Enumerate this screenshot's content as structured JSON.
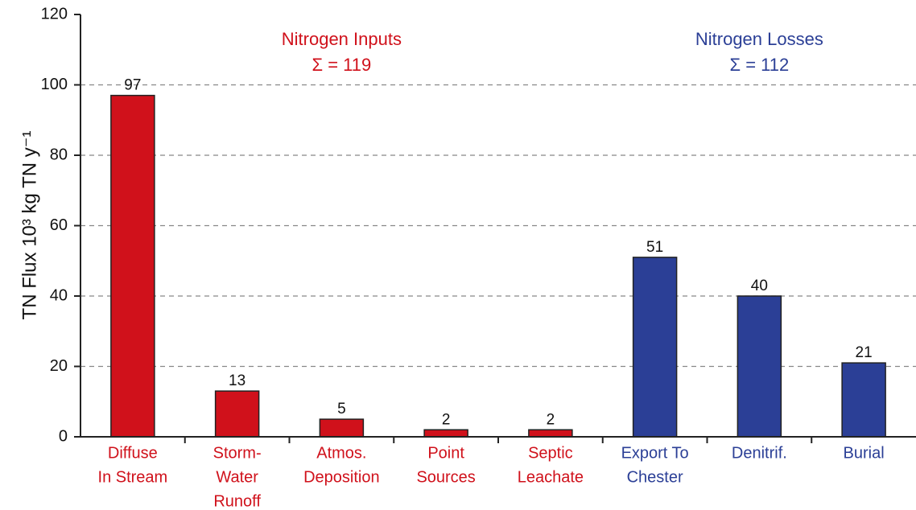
{
  "chart_data": {
    "type": "bar",
    "y_label": "TN Flux 10³ kg TN y⁻¹",
    "categories": [
      [
        "Diffuse",
        "In Stream"
      ],
      [
        "Storm-",
        "Water",
        "Runoff"
      ],
      [
        "Atmos.",
        "Deposition"
      ],
      [
        "Point",
        "Sources"
      ],
      [
        "Septic",
        "Leachate"
      ],
      [
        "Export To",
        "Chester"
      ],
      [
        "Denitrif."
      ],
      [
        "Burial"
      ]
    ],
    "series": [
      {
        "name": "Nitrogen Inputs",
        "note": "Σ = 119",
        "color": "#d0111b",
        "values": [
          97,
          13,
          5,
          2,
          2,
          null,
          null,
          null
        ]
      },
      {
        "name": "Nitrogen Losses",
        "note": "Σ = 112",
        "color": "#2b3f96",
        "values": [
          null,
          null,
          null,
          null,
          null,
          51,
          40,
          21
        ]
      }
    ],
    "ylim": [
      0,
      120
    ],
    "yticks": [
      0,
      20,
      40,
      60,
      80,
      100,
      120
    ],
    "grid": true
  }
}
